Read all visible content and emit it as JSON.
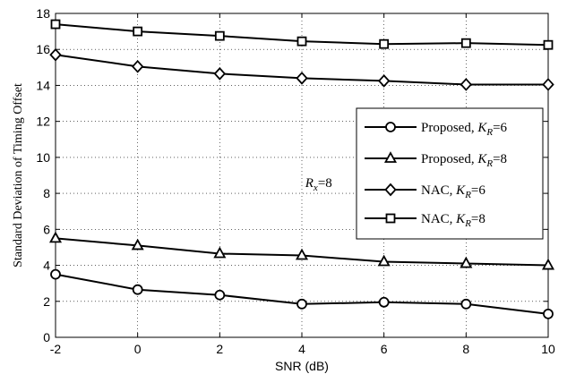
{
  "chart_data": {
    "type": "line",
    "xlabel": "SNR (dB)",
    "ylabel": "Standard Deviation of Timing Offset",
    "xlim": [
      -2,
      10
    ],
    "ylim": [
      0,
      18
    ],
    "xticks": [
      "-2",
      "0",
      "2",
      "4",
      "6",
      "8",
      "10"
    ],
    "yticks": [
      "0",
      "2",
      "4",
      "6",
      "8",
      "10",
      "12",
      "14",
      "16",
      "18"
    ],
    "grid": true,
    "legend_position": "right",
    "annotation": {
      "main": "R",
      "sub": "x",
      "rest": "=8",
      "x": 4.3,
      "y": 8.6
    },
    "x": [
      -2,
      0,
      2,
      4,
      6,
      8,
      10
    ],
    "series": [
      {
        "name_main": "Proposed, ",
        "name_k": "K",
        "name_sub": "R",
        "name_eq": "=6",
        "marker": "circle",
        "values": [
          3.5,
          2.65,
          2.35,
          1.85,
          1.95,
          1.85,
          1.3
        ]
      },
      {
        "name_main": "Proposed, ",
        "name_k": "K",
        "name_sub": "R",
        "name_eq": "=8",
        "marker": "triangle",
        "values": [
          5.5,
          5.1,
          4.65,
          4.55,
          4.2,
          4.1,
          4.0
        ]
      },
      {
        "name_main": "NAC, ",
        "name_k": "K",
        "name_sub": "R",
        "name_eq": "=6",
        "marker": "diamond",
        "values": [
          15.7,
          15.05,
          14.65,
          14.4,
          14.25,
          14.05,
          14.05
        ]
      },
      {
        "name_main": "NAC, ",
        "name_k": "K",
        "name_sub": "R",
        "name_eq": "=8",
        "marker": "square",
        "values": [
          17.4,
          17.0,
          16.75,
          16.45,
          16.3,
          16.35,
          16.25
        ]
      }
    ]
  }
}
